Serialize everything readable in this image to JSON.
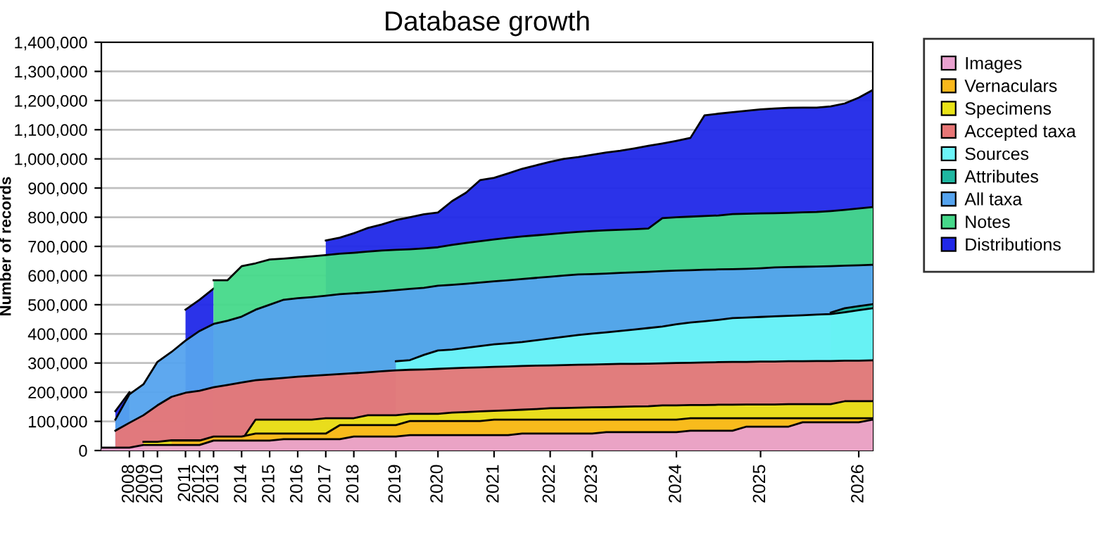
{
  "chart_data": {
    "type": "area",
    "title": "Database growth",
    "ylabel": "Number of records",
    "categories": [
      null,
      null,
      "2008",
      "2009",
      "2010",
      null,
      "2011",
      "2012",
      "2013",
      null,
      "2014",
      null,
      "2015",
      null,
      "2016",
      null,
      "2017",
      null,
      "2018",
      null,
      null,
      "2019",
      null,
      null,
      "2020",
      null,
      null,
      null,
      "2021",
      null,
      null,
      null,
      "2022",
      null,
      null,
      "2023",
      null,
      null,
      null,
      null,
      null,
      "2024",
      null,
      null,
      null,
      null,
      null,
      "2025",
      null,
      null,
      null,
      null,
      null,
      null,
      "2026",
      null
    ],
    "ylim": [
      0,
      1400000
    ],
    "yticks": [
      {
        "value": 0,
        "label": "0"
      },
      {
        "value": 100000,
        "label": "100,000"
      },
      {
        "value": 200000,
        "label": "200,000"
      },
      {
        "value": 300000,
        "label": "300,000"
      },
      {
        "value": 400000,
        "label": "400,000"
      },
      {
        "value": 500000,
        "label": "500,000"
      },
      {
        "value": 600000,
        "label": "600,000"
      },
      {
        "value": 700000,
        "label": "700,000"
      },
      {
        "value": 800000,
        "label": "800,000"
      },
      {
        "value": 900000,
        "label": "900,000"
      },
      {
        "value": 1000000,
        "label": "1,000,000"
      },
      {
        "value": 1100000,
        "label": "1,100,000"
      },
      {
        "value": 1200000,
        "label": "1,200,000"
      },
      {
        "value": 1300000,
        "label": "1,300,000"
      },
      {
        "value": 1400000,
        "label": "1,400,000"
      }
    ],
    "grid": "y",
    "legend": "right",
    "series": [
      {
        "name": "Distributions",
        "color": "#2028e8",
        "values": [
          null,
          135000,
          200000,
          null,
          null,
          null,
          483000,
          517000,
          555000,
          null,
          null,
          null,
          null,
          null,
          null,
          null,
          720000,
          730000,
          745000,
          763000,
          775000,
          790000,
          800000,
          810000,
          816000,
          855000,
          884000,
          927000,
          935000,
          950000,
          966000,
          978000,
          990000,
          1000000,
          1006000,
          1014000,
          1022000,
          1028000,
          1036000,
          1045000,
          1053000,
          1062000,
          1072000,
          1149000,
          1155000,
          1160000,
          1165000,
          1170000,
          1173000,
          1175000,
          1176000,
          1176000,
          1180000,
          1190000,
          1210000,
          1236000
        ]
      },
      {
        "name": "Notes",
        "color": "#46d98a",
        "values": [
          null,
          null,
          null,
          null,
          null,
          null,
          null,
          null,
          584000,
          584000,
          632000,
          642000,
          655000,
          658000,
          662000,
          666000,
          670000,
          675000,
          678000,
          682000,
          686000,
          688000,
          690000,
          693000,
          697000,
          705000,
          712000,
          718000,
          724000,
          729000,
          734000,
          738000,
          742000,
          746000,
          750000,
          753000,
          755000,
          757000,
          759000,
          761000,
          797000,
          800000,
          802000,
          804000,
          806000,
          811000,
          812000,
          813000,
          814000,
          815000,
          817000,
          818000,
          821000,
          825000,
          830000,
          835000
        ]
      },
      {
        "name": "All taxa",
        "color": "#55a3ee",
        "values": [
          null,
          106000,
          193000,
          227000,
          304000,
          338000,
          377000,
          410000,
          434000,
          445000,
          459000,
          483000,
          500000,
          517000,
          522000,
          526000,
          531000,
          536000,
          539000,
          542000,
          546000,
          550000,
          554000,
          558000,
          565000,
          568000,
          572000,
          576000,
          580000,
          584000,
          588000,
          592000,
          596000,
          600000,
          604000,
          605000,
          607000,
          609000,
          611000,
          613000,
          615000,
          617000,
          618000,
          620000,
          621000,
          622000,
          623000,
          625000,
          628000,
          629000,
          630000,
          631000,
          632000,
          634000,
          635000,
          637000
        ]
      },
      {
        "name": "Attributes",
        "color": "#1fb7a1",
        "values": [
          null,
          null,
          null,
          null,
          null,
          null,
          null,
          null,
          null,
          null,
          null,
          null,
          null,
          null,
          null,
          null,
          null,
          null,
          null,
          null,
          null,
          null,
          null,
          null,
          null,
          null,
          null,
          null,
          null,
          null,
          null,
          null,
          null,
          null,
          null,
          null,
          null,
          null,
          null,
          null,
          null,
          null,
          null,
          null,
          null,
          null,
          null,
          null,
          null,
          null,
          null,
          null,
          473000,
          488000,
          495000,
          502000
        ]
      },
      {
        "name": "Sources",
        "color": "#6cf4f8",
        "values": [
          null,
          null,
          null,
          null,
          null,
          null,
          null,
          null,
          null,
          null,
          null,
          null,
          null,
          null,
          null,
          null,
          null,
          null,
          null,
          null,
          null,
          306000,
          310000,
          328000,
          343000,
          346000,
          352000,
          358000,
          364000,
          368000,
          372000,
          378000,
          384000,
          390000,
          396000,
          401000,
          405000,
          410000,
          415000,
          420000,
          425000,
          433000,
          439000,
          443000,
          448000,
          454000,
          456000,
          458000,
          460000,
          462000,
          464000,
          466000,
          468000,
          474000,
          481000,
          488000
        ]
      },
      {
        "name": "Accepted taxa",
        "color": "#e87676",
        "values": [
          null,
          68000,
          95000,
          121000,
          155000,
          184000,
          198000,
          205000,
          217000,
          225000,
          233000,
          241000,
          245000,
          249000,
          253000,
          256000,
          259000,
          262000,
          265000,
          268000,
          272000,
          275000,
          277000,
          278000,
          280000,
          282000,
          284000,
          285000,
          287000,
          288000,
          290000,
          291000,
          292000,
          293000,
          294000,
          295000,
          296000,
          297000,
          297000,
          298000,
          299000,
          300000,
          301000,
          302000,
          303000,
          304000,
          304000,
          305000,
          305000,
          306000,
          306000,
          307000,
          307000,
          308000,
          308000,
          309000
        ]
      },
      {
        "name": "Specimens",
        "color": "#e9e317",
        "values": [
          null,
          null,
          null,
          30000,
          30000,
          35000,
          35000,
          35000,
          35000,
          35000,
          35000,
          106000,
          106000,
          106000,
          106000,
          106000,
          111000,
          111000,
          111000,
          121000,
          121000,
          121000,
          126000,
          126000,
          126000,
          130000,
          132000,
          134000,
          136000,
          138000,
          140000,
          142000,
          145000,
          146000,
          147000,
          148000,
          149000,
          150000,
          151000,
          152000,
          155000,
          155000,
          156000,
          156000,
          157000,
          157000,
          158000,
          158000,
          158000,
          159000,
          159000,
          159000,
          159000,
          169000,
          169000,
          169000
        ]
      },
      {
        "name": "Vernaculars",
        "color": "#f9b81c",
        "values": [
          null,
          null,
          null,
          null,
          null,
          34000,
          34000,
          34000,
          48000,
          48000,
          48000,
          58000,
          58000,
          58000,
          58000,
          58000,
          58000,
          87000,
          87000,
          87000,
          87000,
          87000,
          101000,
          101000,
          101000,
          101000,
          101000,
          101000,
          106000,
          106000,
          106000,
          106000,
          106000,
          106000,
          106000,
          106000,
          106000,
          106000,
          106000,
          106000,
          106000,
          106000,
          111000,
          111000,
          111000,
          111000,
          111000,
          111000,
          111000,
          111000,
          111000,
          111000,
          111000,
          111000,
          111000,
          111000
        ]
      },
      {
        "name": "Images",
        "color": "#e9a1cf",
        "values": [
          10000,
          10000,
          10000,
          19000,
          19000,
          19000,
          19000,
          19000,
          34000,
          34000,
          34000,
          34000,
          34000,
          39000,
          39000,
          39000,
          39000,
          39000,
          48000,
          48000,
          48000,
          48000,
          53000,
          53000,
          53000,
          53000,
          53000,
          53000,
          53000,
          53000,
          58000,
          58000,
          58000,
          58000,
          58000,
          58000,
          63000,
          63000,
          63000,
          63000,
          63000,
          63000,
          68000,
          68000,
          68000,
          68000,
          82000,
          82000,
          82000,
          82000,
          97000,
          97000,
          97000,
          97000,
          97000,
          106000
        ]
      }
    ]
  }
}
